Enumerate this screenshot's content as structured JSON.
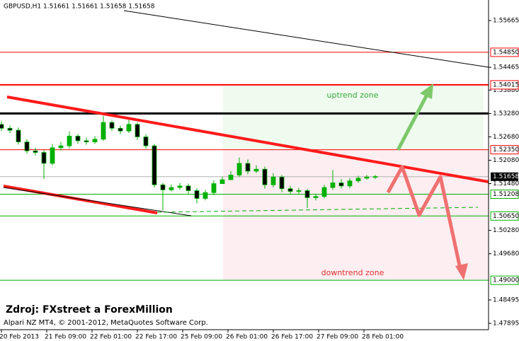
{
  "chart_data": {
    "type": "candlestick",
    "title": "GBPUSD,H1  1.51661 1.51661 1.51658 1.51658",
    "x": [
      0,
      3,
      6,
      9,
      12,
      15,
      18,
      21,
      24,
      27,
      30,
      33,
      36,
      39,
      42,
      45,
      48,
      51,
      54,
      57,
      60,
      63,
      66,
      69,
      72,
      75,
      78,
      81,
      84,
      87,
      90,
      93,
      96,
      99,
      102,
      105,
      108,
      111,
      114,
      117,
      120,
      123,
      126,
      129,
      132
    ],
    "open": [
      1.53,
      1.529,
      1.5285,
      1.5255,
      1.5232,
      1.5228,
      1.52,
      1.524,
      1.5245,
      1.527,
      1.5258,
      1.5255,
      1.5262,
      1.5305,
      1.529,
      1.5283,
      1.53,
      1.5268,
      1.5245,
      1.5145,
      1.5132,
      1.5138,
      1.5142,
      1.513,
      1.511,
      1.5125,
      1.5148,
      1.5158,
      1.517,
      1.52,
      1.518,
      1.5185,
      1.5145,
      1.5165,
      1.5135,
      1.5128,
      1.513,
      1.5112,
      1.5115,
      1.5138,
      1.515,
      1.5142,
      1.5155,
      1.5162,
      1.5165
    ],
    "high": [
      1.5308,
      1.5297,
      1.5292,
      1.5262,
      1.524,
      1.5234,
      1.525,
      1.5255,
      1.5282,
      1.5275,
      1.5266,
      1.527,
      1.5322,
      1.531,
      1.5297,
      1.5312,
      1.5305,
      1.5275,
      1.525,
      1.515,
      1.5146,
      1.515,
      1.5148,
      1.5136,
      1.5132,
      1.5156,
      1.5166,
      1.518,
      1.5215,
      1.521,
      1.5195,
      1.5192,
      1.5175,
      1.517,
      1.5142,
      1.5137,
      1.5135,
      1.5122,
      1.5145,
      1.5183,
      1.516,
      1.5162,
      1.5168,
      1.517,
      1.517
    ],
    "low": [
      1.5283,
      1.5278,
      1.5248,
      1.5225,
      1.522,
      1.516,
      1.5195,
      1.5233,
      1.5238,
      1.525,
      1.5248,
      1.525,
      1.5258,
      1.5283,
      1.5275,
      1.5278,
      1.526,
      1.5238,
      1.5138,
      1.508,
      1.5128,
      1.5132,
      1.5122,
      1.5098,
      1.5105,
      1.5118,
      1.5148,
      1.516,
      1.5165,
      1.5172,
      1.5175,
      1.5135,
      1.5138,
      1.5126,
      1.512,
      1.5122,
      1.5085,
      1.5105,
      1.511,
      1.5132,
      1.5135,
      1.5136,
      1.515,
      1.5158,
      1.516
    ],
    "close": [
      1.529,
      1.5285,
      1.5255,
      1.5232,
      1.5228,
      1.52,
      1.524,
      1.5245,
      1.527,
      1.5258,
      1.5255,
      1.5262,
      1.5305,
      1.529,
      1.5283,
      1.53,
      1.5268,
      1.5245,
      1.5145,
      1.5132,
      1.5138,
      1.5142,
      1.513,
      1.511,
      1.5125,
      1.5148,
      1.5158,
      1.517,
      1.52,
      1.518,
      1.5185,
      1.5145,
      1.5165,
      1.5135,
      1.5128,
      1.513,
      1.5112,
      1.5115,
      1.5138,
      1.515,
      1.5142,
      1.5155,
      1.5162,
      1.5165,
      1.5166
    ],
    "up_color": "#00b000",
    "down_color": "#000000",
    "xlim": [
      -0.5,
      172
    ],
    "xticks": [
      {
        "value": 0,
        "label": "20 Feb 2013"
      },
      {
        "value": 16,
        "label": "21 Feb 09:00"
      },
      {
        "value": 32,
        "label": "22 Feb 01:00"
      },
      {
        "value": 48,
        "label": "22 Feb 17:00"
      },
      {
        "value": 64,
        "label": "25 Feb 09:00"
      },
      {
        "value": 80,
        "label": "26 Feb 01:00"
      },
      {
        "value": 96,
        "label": "26 Feb 17:00"
      },
      {
        "value": 112,
        "label": "27 Feb 09:00"
      },
      {
        "value": 128,
        "label": "28 Feb 01:00"
      }
    ],
    "ylim": [
      1.47732,
      1.56192
    ],
    "yticks": [
      1.55665,
      1.54465,
      {
        "value": 1.5388,
        "label": "1.53880"
      },
      {
        "value": 1.5328,
        "label": "1.53280"
      },
      {
        "value": 1.5268,
        "label": "1.52680"
      },
      {
        "value": 1.5208,
        "label": "1.52080"
      },
      {
        "value": 1.5148,
        "label": "1.51480"
      },
      {
        "value": 1.5028,
        "label": "1.50280"
      },
      {
        "value": 1.4968,
        "label": "1.49680"
      },
      1.48495,
      1.47895
    ],
    "levels": [
      {
        "value": 1.5485,
        "label": "1.54850",
        "color": "#ff0000",
        "width": 1
      },
      {
        "value": 1.54015,
        "label": "1.54015",
        "color": "#ff0000",
        "width": 2
      },
      {
        "value": 1.5235,
        "label": "1.52350",
        "color": "#ff0000",
        "width": 1
      },
      {
        "value": 1.51208,
        "label": "1.51208",
        "color": "#00b000",
        "width": 1
      },
      {
        "value": 1.5065,
        "label": "1.50650",
        "color": "#00b000",
        "width": 1
      },
      {
        "value": 1.49,
        "label": "1.49000",
        "color": "#00b000",
        "width": 1
      }
    ],
    "resistance": {
      "value": 1.5328,
      "color": "#000000",
      "width": 3
    },
    "current_price": {
      "value": 1.51658,
      "label": "1.51658"
    },
    "annotations": {
      "uptrend": "uptrend zone",
      "downtrend": "downtrend zone",
      "source": "Zdroj: FXstreet a ForexMillion",
      "footer": "Alpari NZ MT4, © 2001-2012, MetaQuotes Software Corp."
    }
  }
}
